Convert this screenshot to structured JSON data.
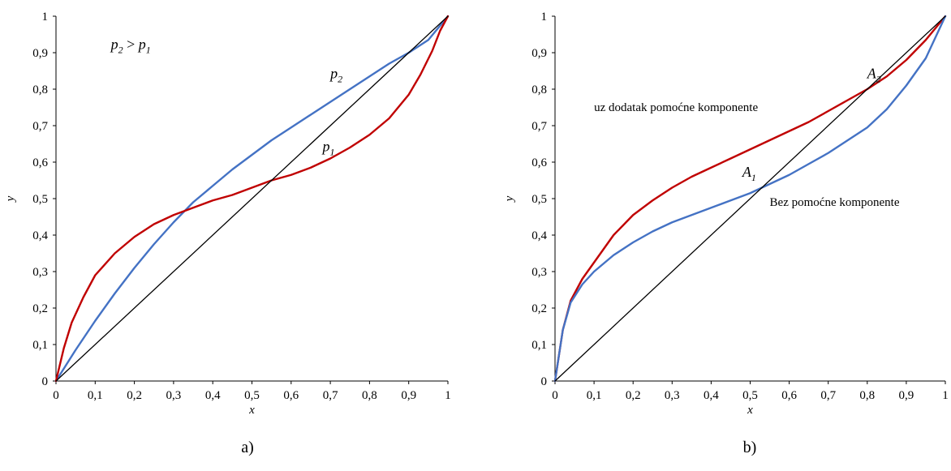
{
  "chart_data": [
    {
      "type": "line",
      "panel_label": "a)",
      "xlabel": "x",
      "ylabel": "y",
      "xlim": [
        0,
        1
      ],
      "ylim": [
        0,
        1
      ],
      "xticks": [
        "0",
        "0,1",
        "0,2",
        "0,3",
        "0,4",
        "0,5",
        "0,6",
        "0,7",
        "0,8",
        "0,9",
        "1"
      ],
      "yticks": [
        "0",
        "0,1",
        "0,2",
        "0,3",
        "0,4",
        "0,5",
        "0,6",
        "0,7",
        "0,8",
        "0,9",
        "1"
      ],
      "grid": false,
      "series": [
        {
          "name": "p2",
          "color": "#4472C4",
          "x": [
            0,
            0.05,
            0.1,
            0.15,
            0.2,
            0.25,
            0.3,
            0.35,
            0.4,
            0.45,
            0.5,
            0.55,
            0.6,
            0.65,
            0.7,
            0.75,
            0.8,
            0.85,
            0.9,
            0.95,
            1
          ],
          "y": [
            0,
            0.085,
            0.165,
            0.24,
            0.31,
            0.375,
            0.435,
            0.49,
            0.535,
            0.58,
            0.62,
            0.66,
            0.695,
            0.73,
            0.765,
            0.8,
            0.835,
            0.87,
            0.9,
            0.935,
            1
          ]
        },
        {
          "name": "p1",
          "color": "#C00000",
          "x": [
            0,
            0.02,
            0.04,
            0.07,
            0.1,
            0.15,
            0.2,
            0.25,
            0.3,
            0.35,
            0.4,
            0.45,
            0.5,
            0.55,
            0.6,
            0.65,
            0.7,
            0.75,
            0.8,
            0.85,
            0.9,
            0.93,
            0.96,
            0.98,
            1
          ],
          "y": [
            0,
            0.09,
            0.16,
            0.23,
            0.29,
            0.35,
            0.395,
            0.43,
            0.455,
            0.475,
            0.495,
            0.51,
            0.53,
            0.55,
            0.565,
            0.585,
            0.61,
            0.64,
            0.675,
            0.72,
            0.785,
            0.84,
            0.905,
            0.96,
            1
          ]
        },
        {
          "name": "diagonal",
          "color": "#000000",
          "x": [
            0,
            1
          ],
          "y": [
            0,
            1
          ]
        }
      ],
      "annotations": [
        {
          "kind": "label",
          "base": "p",
          "sub": "2",
          "x": 0.7,
          "y": 0.83
        },
        {
          "kind": "label",
          "base": "p",
          "sub": "1",
          "x": 0.68,
          "y": 0.63
        },
        {
          "kind": "inequality",
          "base1": "p",
          "sub1": "2",
          "op": " > ",
          "base2": "p",
          "sub2": "1",
          "x": 0.14,
          "y": 0.91
        }
      ]
    },
    {
      "type": "line",
      "panel_label": "b)",
      "xlabel": "x",
      "ylabel": "y",
      "xlim": [
        0,
        1
      ],
      "ylim": [
        0,
        1
      ],
      "xticks": [
        "0",
        "0,1",
        "0,2",
        "0,3",
        "0,4",
        "0,5",
        "0,6",
        "0,7",
        "0,8",
        "0,9",
        "1"
      ],
      "yticks": [
        "0",
        "0,1",
        "0,2",
        "0,3",
        "0,4",
        "0,5",
        "0,6",
        "0,7",
        "0,8",
        "0,9",
        "1"
      ],
      "grid": false,
      "series": [
        {
          "name": "uz dodatak pomoćne komponente",
          "color": "#C00000",
          "x": [
            0,
            0.02,
            0.04,
            0.07,
            0.1,
            0.15,
            0.2,
            0.25,
            0.3,
            0.35,
            0.4,
            0.45,
            0.5,
            0.55,
            0.6,
            0.65,
            0.7,
            0.75,
            0.8,
            0.85,
            0.9,
            0.95,
            1
          ],
          "y": [
            0,
            0.14,
            0.22,
            0.28,
            0.325,
            0.4,
            0.455,
            0.495,
            0.53,
            0.56,
            0.585,
            0.61,
            0.635,
            0.66,
            0.685,
            0.71,
            0.74,
            0.77,
            0.8,
            0.835,
            0.88,
            0.935,
            1
          ]
        },
        {
          "name": "Bez pomoćne komponente",
          "color": "#4472C4",
          "x": [
            0,
            0.02,
            0.04,
            0.07,
            0.1,
            0.15,
            0.2,
            0.25,
            0.3,
            0.35,
            0.4,
            0.45,
            0.5,
            0.55,
            0.6,
            0.65,
            0.7,
            0.75,
            0.8,
            0.85,
            0.9,
            0.95,
            1
          ],
          "y": [
            0,
            0.14,
            0.215,
            0.265,
            0.3,
            0.345,
            0.38,
            0.41,
            0.435,
            0.455,
            0.475,
            0.495,
            0.515,
            0.54,
            0.565,
            0.595,
            0.625,
            0.66,
            0.695,
            0.745,
            0.81,
            0.885,
            1
          ]
        },
        {
          "name": "diagonal",
          "color": "#000000",
          "x": [
            0,
            1
          ],
          "y": [
            0,
            1
          ]
        }
      ],
      "annotations": [
        {
          "kind": "label",
          "base": "A",
          "sub": "2",
          "x": 0.8,
          "y": 0.83
        },
        {
          "kind": "label",
          "base": "A",
          "sub": "1",
          "x": 0.48,
          "y": 0.56
        },
        {
          "kind": "text",
          "text": "uz dodatak pomoćne komponente",
          "x": 0.1,
          "y": 0.74
        },
        {
          "kind": "text",
          "text": "Bez pomoćne komponente",
          "x": 0.55,
          "y": 0.48
        }
      ]
    }
  ]
}
